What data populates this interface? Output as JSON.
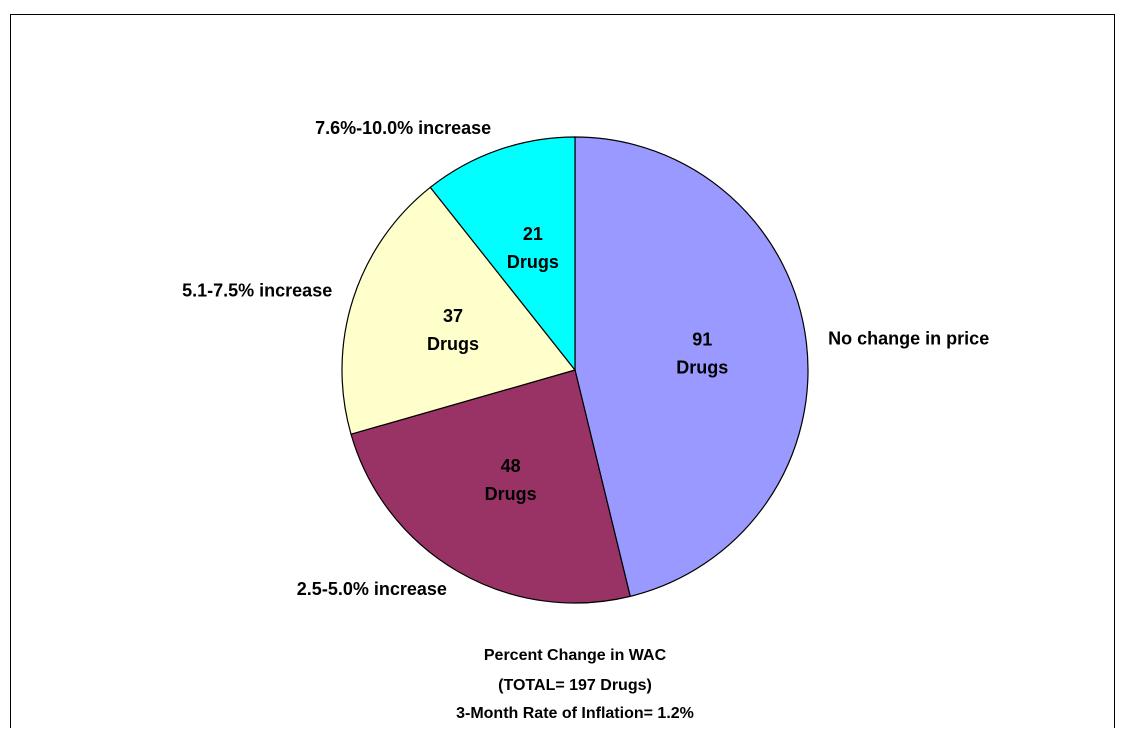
{
  "chart_data": {
    "type": "pie",
    "title": "Percent Change in WAC",
    "annotations": [
      "(TOTAL= 197 Drugs)",
      "3-Month Rate of Inflation= 1.2%"
    ],
    "categories": [
      "No change in price",
      "2.5-5.0% increase",
      "5.1-7.5% increase",
      "7.6%-10.0% increase"
    ],
    "values": [
      91,
      48,
      37,
      21
    ],
    "value_labels": [
      "91 Drugs",
      "48 Drugs",
      "37 Drugs",
      "21 Drugs"
    ],
    "colors": [
      "#9999ff",
      "#993366",
      "#ffffcc",
      "#00ffff"
    ]
  }
}
